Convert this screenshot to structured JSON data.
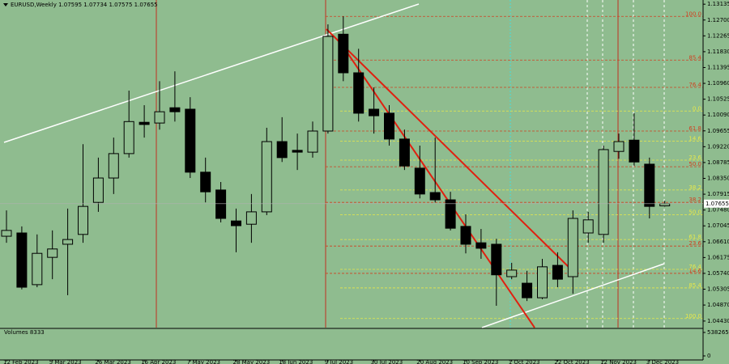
{
  "chart_data": {
    "type": "candlestick",
    "title": "EURUSD,Weekly",
    "categories": [
      "12 Feb 2023",
      null,
      null,
      "5 Mar 2023",
      null,
      null,
      "26 Mar 2023",
      null,
      null,
      "16 Apr 2023",
      null,
      null,
      "7 May 2023",
      null,
      null,
      "28 May 2023",
      null,
      null,
      "18 Jun 2023",
      null,
      null,
      "9 Jul 2023",
      null,
      null,
      "30 Jul 2023",
      null,
      null,
      "20 Aug 2023",
      null,
      null,
      "10 Sep 2023",
      null,
      null,
      "1 Oct 2023",
      null,
      null,
      "22 Oct 2023",
      null,
      null,
      "12 Nov 2023",
      null,
      null,
      "3 Dec 2023",
      null
    ],
    "open": [
      1.0676,
      1.0685,
      1.0543,
      1.0618,
      1.0654,
      1.0681,
      1.0769,
      1.0836,
      1.0903,
      1.0989,
      1.0987,
      1.1029,
      1.1025,
      1.0852,
      1.0803,
      1.0718,
      1.0709,
      1.0743,
      1.0936,
      1.0912,
      1.0907,
      1.0965,
      1.1231,
      1.1125,
      1.1025,
      1.1014,
      1.0943,
      1.0863,
      1.0796,
      1.0776,
      1.0703,
      1.0658,
      1.0654,
      1.0565,
      1.0547,
      1.0507,
      1.0596,
      1.0565,
      1.0685,
      1.0681,
      1.0909,
      1.094,
      1.0874,
      1.07595
    ],
    "high": [
      1.0747,
      1.0703,
      1.0681,
      1.0692,
      1.0752,
      1.0929,
      1.0892,
      1.0947,
      1.1076,
      1.1036,
      1.1102,
      1.1129,
      1.1058,
      1.0892,
      1.0825,
      1.0752,
      1.0792,
      1.0974,
      1.1003,
      1.0958,
      1.0991,
      1.1258,
      1.128,
      1.1191,
      1.1085,
      1.1036,
      1.0969,
      1.0925,
      1.0947,
      1.0798,
      1.0736,
      1.0696,
      1.0669,
      1.0603,
      1.0581,
      1.0614,
      1.0632,
      1.0747,
      1.0743,
      1.0925,
      1.0958,
      1.1014,
      1.0892,
      1.07734
    ],
    "low": [
      1.0658,
      1.053,
      1.0536,
      1.0558,
      1.0514,
      1.0658,
      1.0743,
      1.0792,
      1.0892,
      1.0947,
      1.0969,
      1.0991,
      1.0836,
      1.0769,
      1.0714,
      1.0632,
      1.0658,
      1.0734,
      1.088,
      1.0858,
      1.0892,
      1.0958,
      1.1102,
      1.0991,
      1.0958,
      1.0925,
      1.0858,
      1.078,
      1.0769,
      1.0692,
      1.0629,
      1.0614,
      1.0485,
      1.0558,
      1.0498,
      1.0503,
      1.0536,
      1.0518,
      1.0658,
      1.0658,
      1.0889,
      1.0869,
      1.0725,
      1.07575
    ],
    "close": [
      1.0692,
      1.0536,
      1.0629,
      1.0641,
      1.0667,
      1.0758,
      1.0836,
      1.0903,
      1.0991,
      1.0983,
      1.1018,
      1.1018,
      1.0852,
      1.0798,
      1.0725,
      1.0705,
      1.0743,
      1.0936,
      1.0892,
      1.0907,
      1.0965,
      1.1225,
      1.1125,
      1.1014,
      1.1007,
      1.0943,
      1.0869,
      1.0792,
      1.0776,
      1.0698,
      1.0654,
      1.0643,
      1.057,
      1.0583,
      1.0507,
      1.0592,
      1.0558,
      1.0725,
      1.0721,
      1.0914,
      1.0936,
      1.088,
      1.0758,
      1.07655
    ],
    "up_color": "#8fbc8f",
    "down_color": "#000000",
    "ylim": [
      1.0425,
      1.1325
    ],
    "yticks": [
      1.13135,
      {
        "value": 1.127,
        "label": "1.12700"
      },
      1.12265,
      {
        "value": 1.1183,
        "label": "1.11830"
      },
      1.11395,
      {
        "value": 1.1096,
        "label": "1.10960"
      },
      1.10525,
      {
        "value": 1.1009,
        "label": "1.10090"
      },
      1.09655,
      {
        "value": 1.0922,
        "label": "1.09220"
      },
      1.08785,
      {
        "value": 1.0835,
        "label": "1.08350"
      },
      1.07915,
      {
        "value": 1.0748,
        "label": "1.07480"
      },
      1.07045,
      {
        "value": 1.0661,
        "label": "1.06610"
      },
      1.06175,
      {
        "value": 1.0574,
        "label": "1.05740"
      },
      1.05305,
      {
        "value": 1.0487,
        "label": "1.04870"
      },
      {
        "value": 1.0443,
        "label": "1.04430"
      }
    ],
    "grid": false,
    "fib_sets": [
      {
        "color": "#d04020",
        "levels": [
          {
            "value": 1.128,
            "label": "100.0"
          },
          {
            "value": 1.116,
            "label": "85.4"
          },
          {
            "value": 1.1085,
            "label": "76.4"
          },
          {
            "value": 1.0965,
            "label": "61.8"
          },
          {
            "value": 1.0867,
            "label": "50.0"
          },
          {
            "value": 1.0769,
            "label": "38.2"
          },
          {
            "value": 1.0649,
            "label": "23.6"
          },
          {
            "value": 1.0574,
            "label": "14.6"
          }
        ]
      },
      {
        "color": "#e8e84a",
        "levels": [
          {
            "value": 1.102,
            "label": "0.0"
          },
          {
            "value": 1.0937,
            "label": "14.6"
          },
          {
            "value": 1.0885,
            "label": "23.6"
          },
          {
            "value": 1.0803,
            "label": "38.2"
          },
          {
            "value": 1.0735,
            "label": "50.0"
          },
          {
            "value": 1.0667,
            "label": "61.8"
          },
          {
            "value": 1.0585,
            "label": "76.4"
          },
          {
            "value": 1.0534,
            "label": "85.4"
          },
          {
            "value": 1.045,
            "label": "100.0"
          }
        ]
      }
    ],
    "volume": {
      "label": "Volumes 8333",
      "ylim": [
        0,
        538265
      ],
      "yticks": [
        0,
        538265
      ]
    }
  }
}
